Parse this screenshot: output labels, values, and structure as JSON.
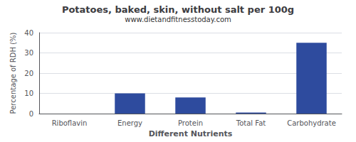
{
  "chart_data": {
    "type": "bar",
    "title": "Potatoes, baked, skin, without salt per 100g",
    "subtitle": "www.dietandfitnesstoday.com",
    "xlabel": "Different Nutrients",
    "ylabel": "Percentage of RDH (%)",
    "categories": [
      "Riboflavin",
      "Energy",
      "Protein",
      "Total Fat",
      "Carbohydrate"
    ],
    "values": [
      0,
      10,
      8,
      0.5,
      35
    ],
    "color": "#2e4b9e",
    "ylim": [
      0,
      40
    ],
    "yticks": [
      0,
      10,
      20,
      30,
      40
    ],
    "grid": true
  }
}
